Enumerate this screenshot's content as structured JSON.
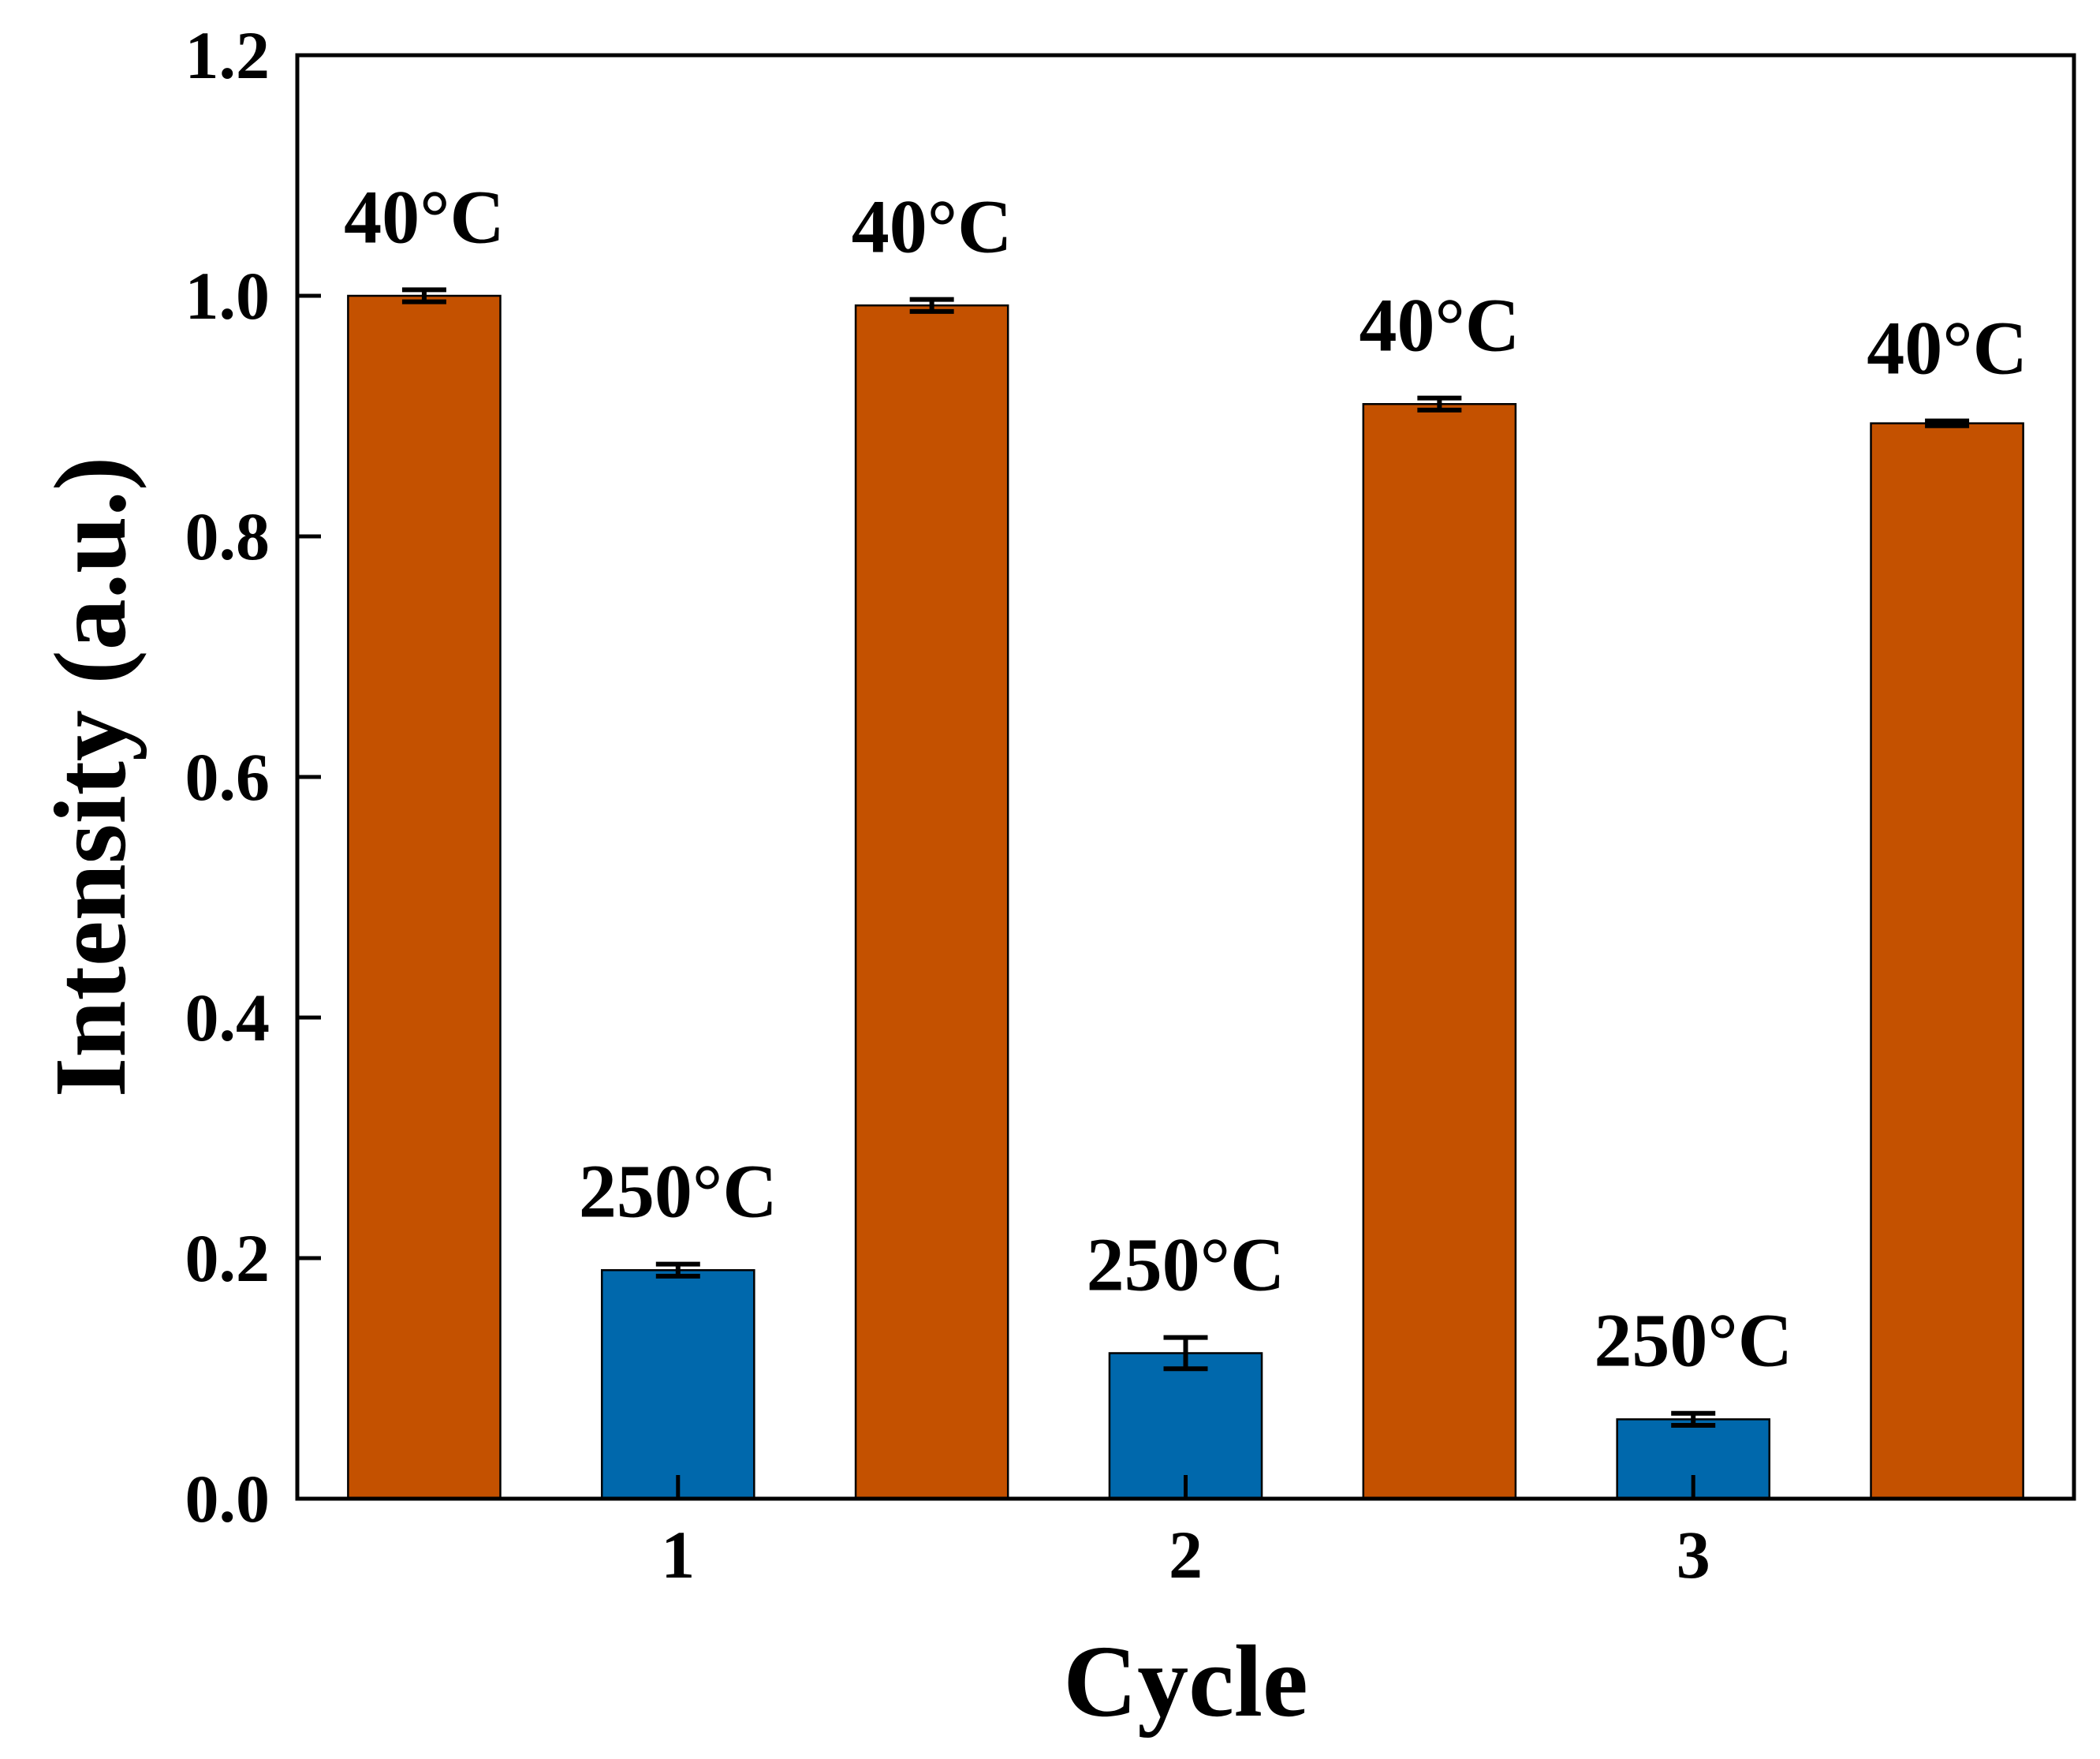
{
  "chart_data": {
    "type": "bar",
    "title": "",
    "xlabel": "Cycle",
    "ylabel": "Intensity (a.u.)",
    "ylim": [
      0,
      1.2
    ],
    "yticks": [
      "0.0",
      "0.2",
      "0.4",
      "0.6",
      "0.8",
      "1.0",
      "1.2"
    ],
    "xticks": [
      "1",
      "2",
      "3"
    ],
    "grid": false,
    "colors": {
      "40C": "#c45100",
      "250C": "#0068ac",
      "axis": "#000000"
    },
    "bars": [
      {
        "label": "40°C",
        "group": "40C",
        "value": 1.0,
        "error": 0.005
      },
      {
        "label": "250°C",
        "group": "250C",
        "value": 0.19,
        "error": 0.005
      },
      {
        "label": "40°C",
        "group": "40C",
        "value": 0.992,
        "error": 0.005
      },
      {
        "label": "250°C",
        "group": "250C",
        "value": 0.121,
        "error": 0.013
      },
      {
        "label": "40°C",
        "group": "40C",
        "value": 0.91,
        "error": 0.005
      },
      {
        "label": "250°C",
        "group": "250C",
        "value": 0.066,
        "error": 0.005
      },
      {
        "label": "40°C",
        "group": "40C",
        "value": 0.894,
        "error": 0.002
      }
    ]
  }
}
